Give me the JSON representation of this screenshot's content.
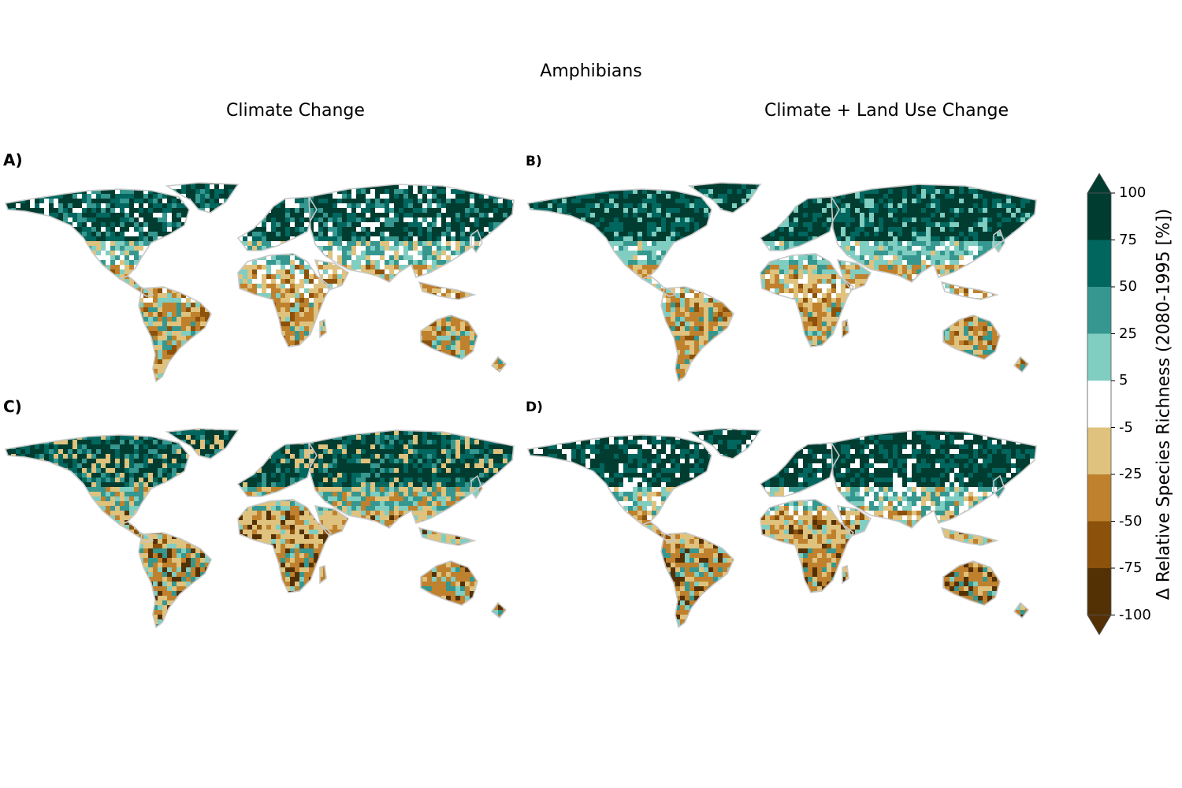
{
  "title": "Amphibians",
  "columns": {
    "left": "Climate Change",
    "right": "Climate + Land Use Change"
  },
  "panels": {
    "a": {
      "label": "A)"
    },
    "b": {
      "label": "B)"
    },
    "c": {
      "label": "C)"
    },
    "d": {
      "label": "D)"
    }
  },
  "colorbar": {
    "label": "Δ Relative Species Richness (2080-1995 [%])",
    "ticks": [
      "100",
      "75",
      "50",
      "25",
      "5",
      "-5",
      "-25",
      "-50",
      "-75",
      "-100"
    ],
    "colors": [
      "#003c30",
      "#01665e",
      "#35978f",
      "#80cdc1",
      "#ffffff",
      "#dfc27d",
      "#bf812d",
      "#8c510a",
      "#543005"
    ],
    "extend": "both"
  },
  "map_palette": {
    "coastline": "#c8c8c8"
  }
}
